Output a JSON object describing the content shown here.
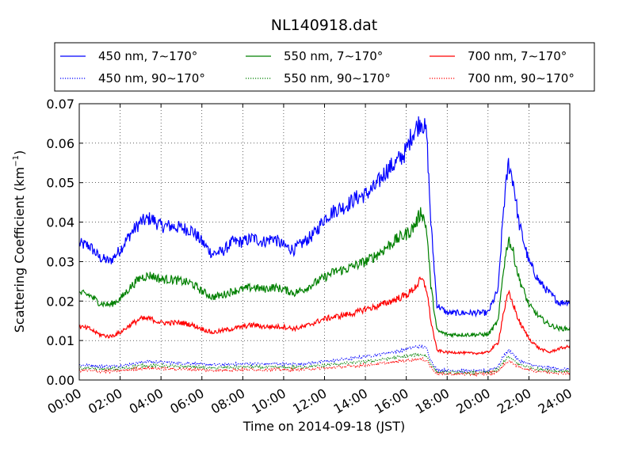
{
  "chart_data": {
    "type": "line",
    "title": "NL140918.dat",
    "xlabel": "Time on 2014-09-18 (JST)",
    "ylabel": "Scattering Coefficient (km",
    "ylabel_sup": "−1",
    "ylabel_suffix": ")",
    "xlim": [
      "00:00",
      "24:00"
    ],
    "ylim": [
      0,
      0.07
    ],
    "x_ticks": [
      "00:00",
      "02:00",
      "04:00",
      "06:00",
      "08:00",
      "10:00",
      "12:00",
      "14:00",
      "16:00",
      "18:00",
      "20:00",
      "22:00",
      "24:00"
    ],
    "y_ticks": [
      "0.00",
      "0.01",
      "0.02",
      "0.03",
      "0.04",
      "0.05",
      "0.06",
      "0.07"
    ],
    "grid": true,
    "legend_position": "top",
    "x_hours": [
      0,
      0.5,
      1,
      1.5,
      2,
      2.5,
      3,
      3.5,
      4,
      4.5,
      5,
      5.5,
      6,
      6.5,
      7,
      7.5,
      8,
      8.5,
      9,
      9.5,
      10,
      10.5,
      11,
      11.5,
      12,
      12.5,
      13,
      13.5,
      14,
      14.5,
      15,
      15.5,
      16,
      16.25,
      16.5,
      16.75,
      17,
      17.2,
      17.5,
      18,
      18.5,
      19,
      19.5,
      20,
      20.5,
      20.75,
      21,
      21.25,
      21.5,
      22,
      22.5,
      23,
      23.5,
      24
    ],
    "series": [
      {
        "name": "450 nm, 7∼170°",
        "color": "#0000ff",
        "style": "solid",
        "values": [
          0.0345,
          0.034,
          0.031,
          0.03,
          0.033,
          0.037,
          0.04,
          0.041,
          0.039,
          0.039,
          0.0385,
          0.038,
          0.035,
          0.032,
          0.0325,
          0.035,
          0.035,
          0.036,
          0.035,
          0.036,
          0.034,
          0.033,
          0.035,
          0.037,
          0.041,
          0.043,
          0.044,
          0.046,
          0.047,
          0.049,
          0.053,
          0.055,
          0.058,
          0.062,
          0.064,
          0.066,
          0.062,
          0.04,
          0.019,
          0.017,
          0.017,
          0.017,
          0.017,
          0.017,
          0.023,
          0.043,
          0.055,
          0.05,
          0.04,
          0.03,
          0.025,
          0.022,
          0.0195,
          0.02
        ]
      },
      {
        "name": "450 nm, 90∼170°",
        "color": "#0000ff",
        "style": "dotted",
        "values": [
          0.0038,
          0.0037,
          0.0035,
          0.0035,
          0.0036,
          0.004,
          0.0045,
          0.0047,
          0.0045,
          0.0044,
          0.0043,
          0.0042,
          0.004,
          0.0038,
          0.0039,
          0.004,
          0.0041,
          0.0041,
          0.004,
          0.0041,
          0.004,
          0.004,
          0.0041,
          0.0044,
          0.0047,
          0.005,
          0.0053,
          0.0056,
          0.006,
          0.0063,
          0.0068,
          0.0072,
          0.0078,
          0.0082,
          0.0085,
          0.0085,
          0.008,
          0.005,
          0.0026,
          0.0024,
          0.0024,
          0.0023,
          0.0023,
          0.0024,
          0.0035,
          0.006,
          0.0075,
          0.0065,
          0.005,
          0.004,
          0.0034,
          0.003,
          0.0028,
          0.0028
        ]
      },
      {
        "name": "550 nm, 7∼170°",
        "color": "#008000",
        "style": "solid",
        "values": [
          0.022,
          0.0215,
          0.0195,
          0.019,
          0.0205,
          0.0235,
          0.026,
          0.0265,
          0.0255,
          0.0255,
          0.025,
          0.0245,
          0.0225,
          0.021,
          0.0215,
          0.0225,
          0.023,
          0.0235,
          0.023,
          0.0235,
          0.023,
          0.022,
          0.023,
          0.0245,
          0.026,
          0.0275,
          0.028,
          0.029,
          0.03,
          0.0315,
          0.0335,
          0.0355,
          0.037,
          0.038,
          0.04,
          0.043,
          0.038,
          0.024,
          0.0125,
          0.0115,
          0.0115,
          0.0115,
          0.0115,
          0.0115,
          0.015,
          0.028,
          0.036,
          0.032,
          0.026,
          0.019,
          0.016,
          0.014,
          0.013,
          0.013
        ]
      },
      {
        "name": "550 nm, 90∼170°",
        "color": "#008000",
        "style": "dotted",
        "values": [
          0.003,
          0.003,
          0.0028,
          0.0028,
          0.0029,
          0.0032,
          0.0036,
          0.0037,
          0.0036,
          0.0035,
          0.0034,
          0.0034,
          0.0032,
          0.003,
          0.0031,
          0.0032,
          0.0033,
          0.0033,
          0.0032,
          0.0033,
          0.0032,
          0.0032,
          0.0033,
          0.0035,
          0.0037,
          0.004,
          0.0042,
          0.0044,
          0.0047,
          0.005,
          0.0054,
          0.0057,
          0.006,
          0.0062,
          0.0064,
          0.0064,
          0.006,
          0.004,
          0.002,
          0.0019,
          0.0019,
          0.0018,
          0.0018,
          0.0019,
          0.0027,
          0.0045,
          0.0058,
          0.005,
          0.004,
          0.0032,
          0.0027,
          0.0024,
          0.0022,
          0.0022
        ]
      },
      {
        "name": "700 nm, 7∼170°",
        "color": "#ff0000",
        "style": "solid",
        "values": [
          0.0135,
          0.013,
          0.0115,
          0.011,
          0.012,
          0.014,
          0.0155,
          0.0155,
          0.0145,
          0.0145,
          0.0145,
          0.014,
          0.013,
          0.012,
          0.0125,
          0.013,
          0.0135,
          0.014,
          0.0135,
          0.0135,
          0.0135,
          0.013,
          0.0135,
          0.0145,
          0.0155,
          0.016,
          0.0165,
          0.017,
          0.018,
          0.0185,
          0.0195,
          0.0205,
          0.0215,
          0.0225,
          0.024,
          0.0255,
          0.023,
          0.015,
          0.0075,
          0.007,
          0.007,
          0.0068,
          0.0068,
          0.007,
          0.0095,
          0.017,
          0.022,
          0.019,
          0.015,
          0.0105,
          0.008,
          0.007,
          0.008,
          0.0085
        ]
      },
      {
        "name": "700 nm, 90∼170°",
        "color": "#ff0000",
        "style": "dotted",
        "values": [
          0.0024,
          0.0024,
          0.0022,
          0.0022,
          0.0023,
          0.0026,
          0.0029,
          0.003,
          0.0029,
          0.0028,
          0.0028,
          0.0027,
          0.0026,
          0.0024,
          0.0025,
          0.0026,
          0.0026,
          0.0027,
          0.0026,
          0.0027,
          0.0026,
          0.0026,
          0.0027,
          0.0028,
          0.003,
          0.0032,
          0.0034,
          0.0036,
          0.0038,
          0.004,
          0.0043,
          0.0046,
          0.0049,
          0.0051,
          0.0053,
          0.0053,
          0.005,
          0.0032,
          0.0016,
          0.0015,
          0.0015,
          0.0015,
          0.0015,
          0.0016,
          0.0022,
          0.0037,
          0.0048,
          0.0042,
          0.0033,
          0.0026,
          0.0022,
          0.002,
          0.0018,
          0.0018
        ]
      }
    ]
  }
}
